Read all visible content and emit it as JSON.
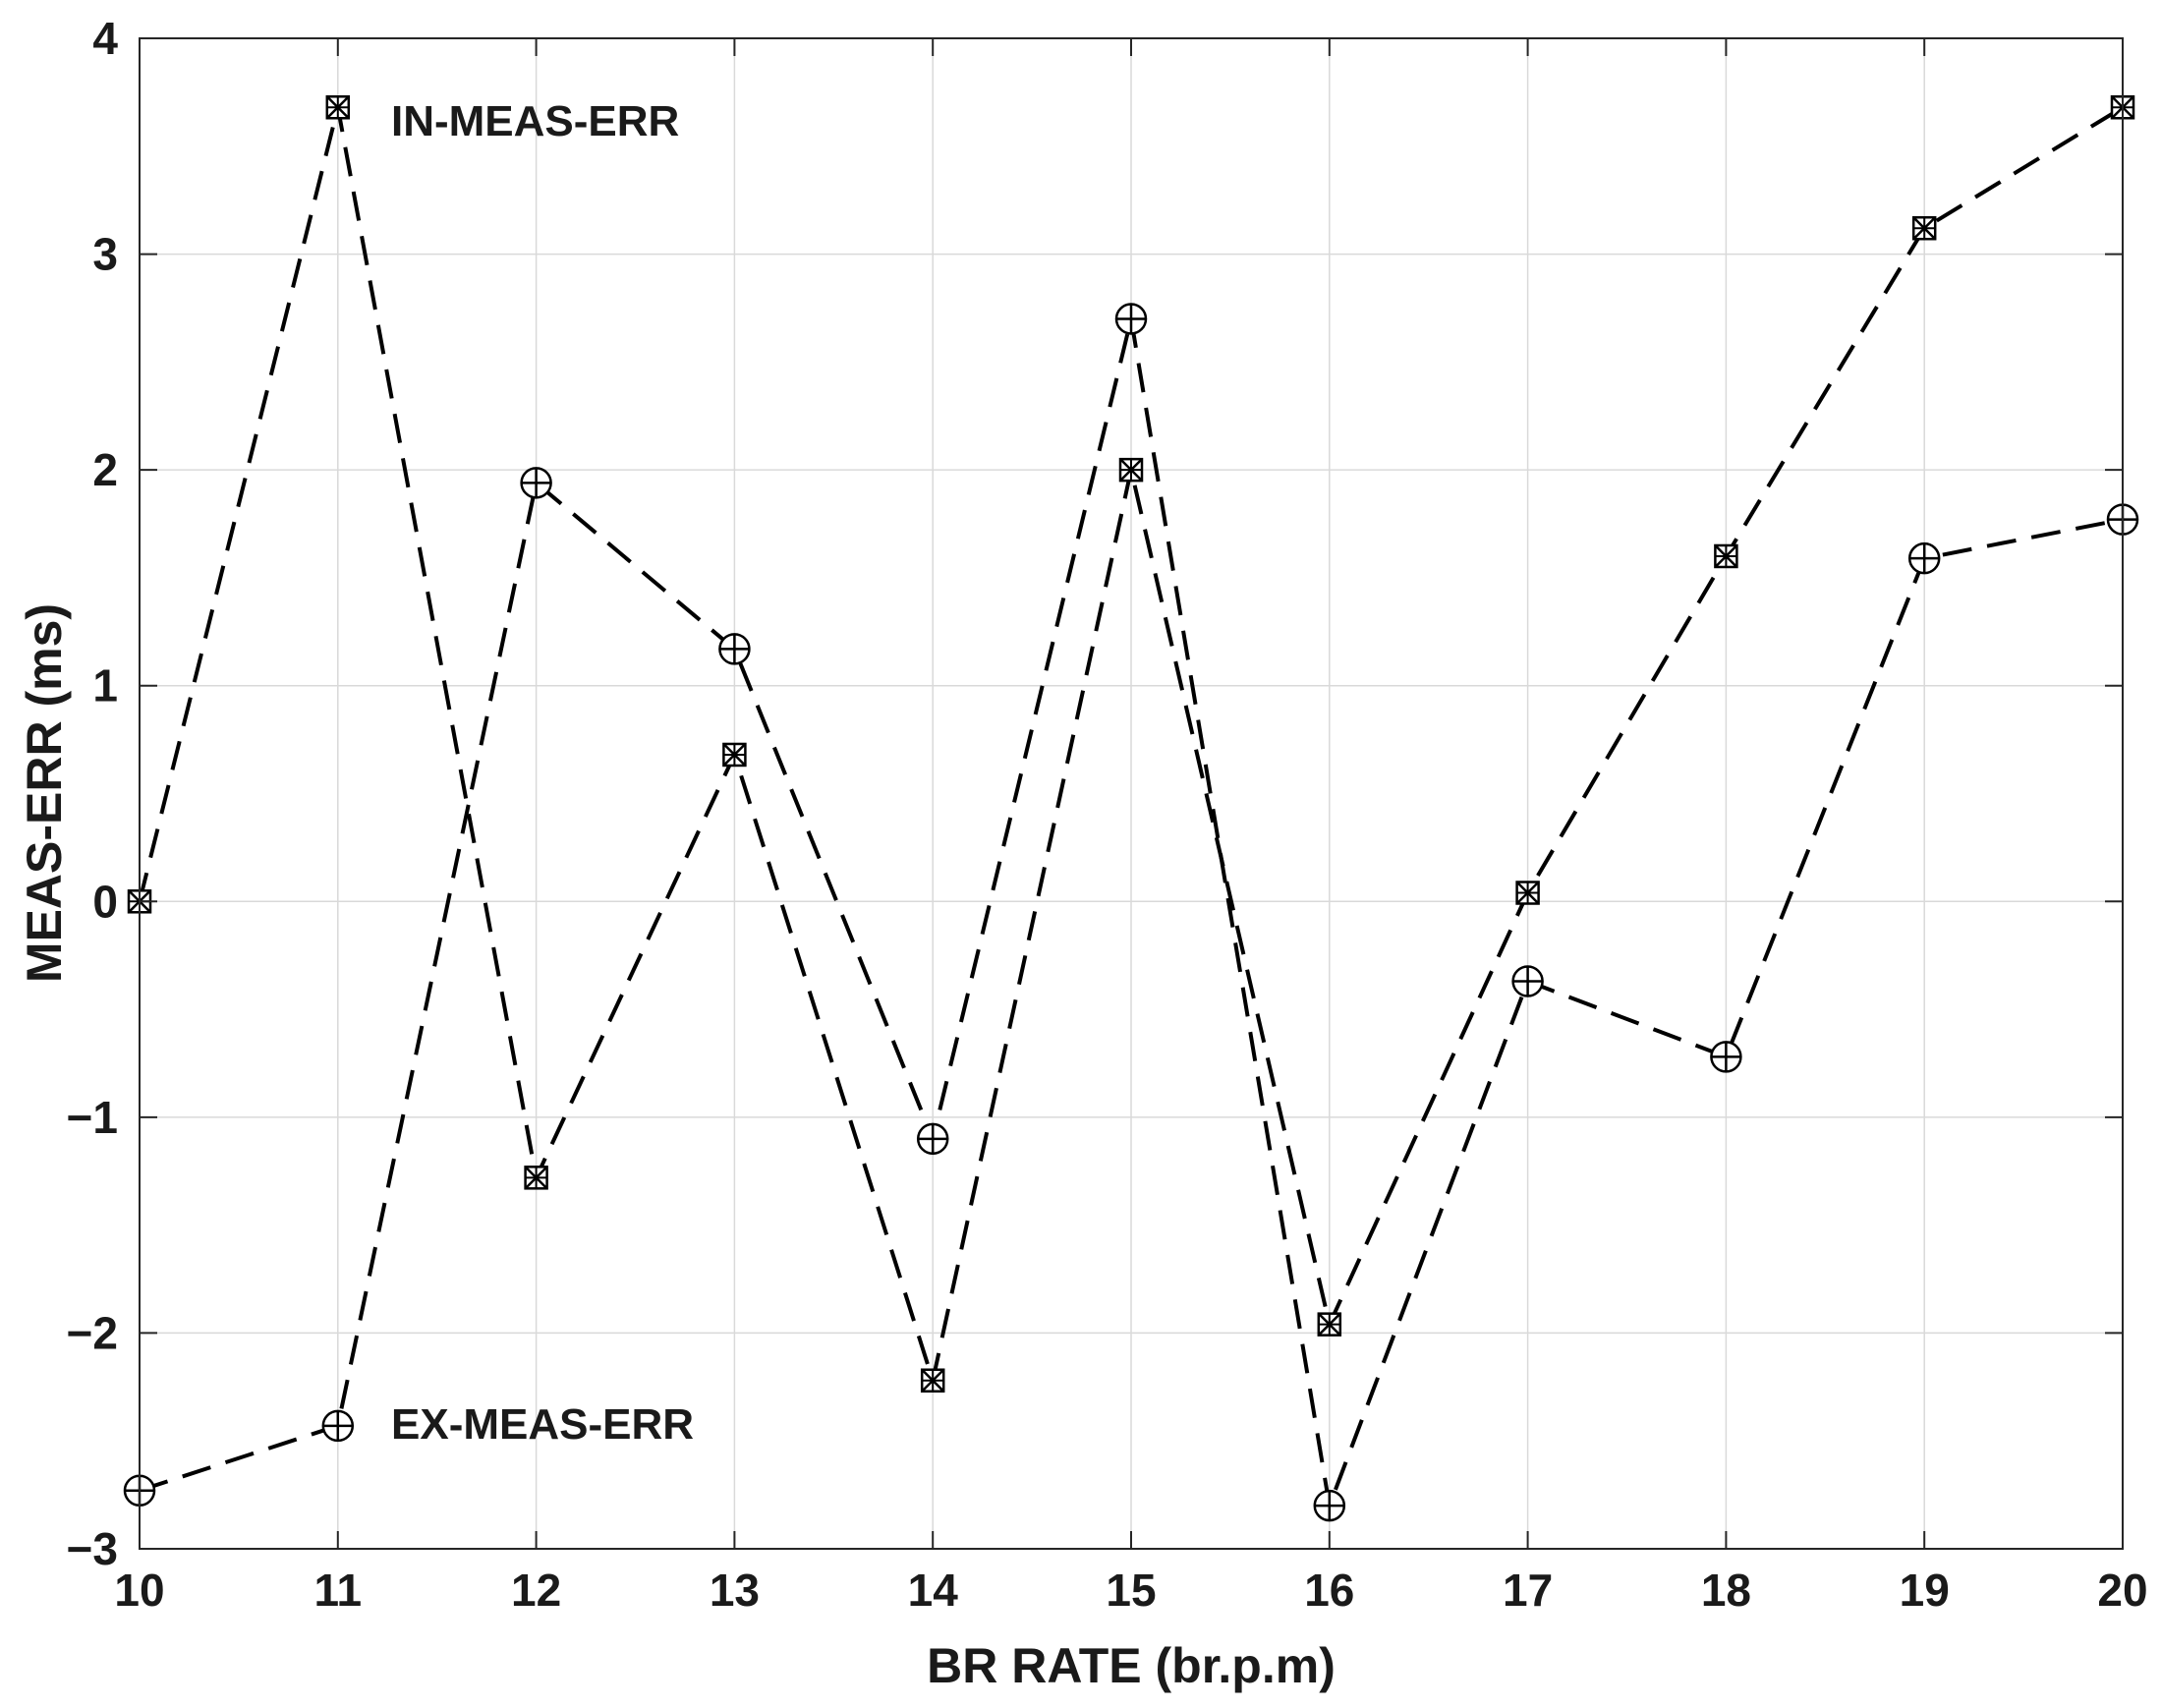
{
  "chart_data": {
    "type": "line",
    "xlabel": "BR RATE (br.p.m)",
    "ylabel": "MEAS-ERR (ms)",
    "xlim": [
      10,
      20
    ],
    "ylim": [
      -3,
      4
    ],
    "xticks": [
      "10",
      "11",
      "12",
      "13",
      "14",
      "15",
      "16",
      "17",
      "18",
      "19",
      "20"
    ],
    "yticks": [
      "4",
      "3",
      "2",
      "1",
      "0",
      "−1",
      "−2",
      "−3"
    ],
    "grid": true,
    "x": [
      10,
      11,
      12,
      13,
      14,
      15,
      16,
      17,
      18,
      19,
      20
    ],
    "series": [
      {
        "name": "IN-MEAS-ERR",
        "marker": "square-x",
        "line_style": "dashed",
        "color": "#000000",
        "values": [
          0.0,
          3.68,
          -1.28,
          0.68,
          -2.22,
          2.0,
          -1.96,
          0.04,
          1.6,
          3.12,
          3.68
        ]
      },
      {
        "name": "EX-MEAS-ERR",
        "marker": "circle-plus",
        "line_style": "dashed",
        "color": "#000000",
        "values": [
          -2.73,
          -2.43,
          1.94,
          1.17,
          -1.1,
          2.7,
          -2.8,
          -0.37,
          -0.72,
          1.59,
          1.77
        ]
      }
    ],
    "annotations": [
      {
        "text": "IN-MEAS-ERR",
        "series": 0
      },
      {
        "text": "EX-MEAS-ERR",
        "series": 1
      }
    ]
  }
}
